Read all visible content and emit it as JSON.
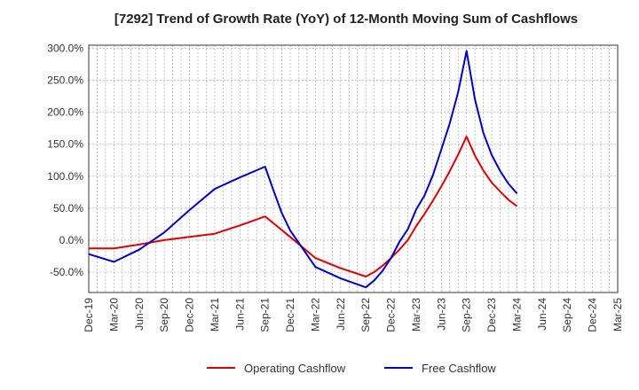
{
  "chart_data": {
    "type": "line",
    "title": "[7292]  Trend of Growth Rate (YoY) of 12-Month Moving Sum of Cashflows",
    "xlabel": "",
    "ylabel": "",
    "x_ticks": [
      "Dec-19",
      "Mar-20",
      "Jun-20",
      "Sep-20",
      "Dec-20",
      "Mar-21",
      "Jun-21",
      "Sep-21",
      "Dec-21",
      "Mar-22",
      "Jun-22",
      "Sep-22",
      "Dec-22",
      "Mar-23",
      "Jun-23",
      "Sep-23",
      "Dec-23",
      "Mar-24",
      "Jun-24",
      "Sep-24",
      "Dec-24",
      "Mar-25"
    ],
    "y_ticks": [
      "300.0%",
      "250.0%",
      "200.0%",
      "150.0%",
      "100.0%",
      "50.0%",
      "0.0%",
      "-50.0%"
    ],
    "ylim": [
      -82,
      305
    ],
    "grid": true,
    "legend_position": "bottom",
    "colors": {
      "operating": "#e00000",
      "free": "#0000cc",
      "grid": "#aaaaaa",
      "axis": "#333333"
    },
    "series": [
      {
        "name": "Operating Cashflow",
        "color": "#e00000",
        "x": [
          "Dec-19",
          "Mar-20",
          "Jun-20",
          "Sep-20",
          "Dec-20",
          "Mar-21",
          "Jun-21",
          "Sep-21",
          "Dec-21",
          "Mar-22",
          "Jun-22",
          "Sep-22",
          "Oct-22",
          "Nov-22",
          "Dec-22",
          "Jan-23",
          "Feb-23",
          "Mar-23",
          "Apr-23",
          "May-23",
          "Jun-23",
          "Jul-23",
          "Aug-23",
          "Sep-23",
          "Oct-23",
          "Nov-23",
          "Dec-23",
          "Jan-24",
          "Feb-24",
          "Mar-24"
        ],
        "values": [
          -13,
          -13,
          -7,
          0,
          5,
          10,
          23,
          37,
          5,
          -28,
          -44,
          -57,
          -50,
          -40,
          -28,
          -15,
          0,
          22,
          41,
          62,
          84,
          108,
          134,
          162,
          132,
          109,
          90,
          76,
          63,
          53
        ]
      },
      {
        "name": "Free Cashflow",
        "color": "#0000cc",
        "x": [
          "Dec-19",
          "Mar-20",
          "Jun-20",
          "Sep-20",
          "Dec-20",
          "Mar-21",
          "Jun-21",
          "Sep-21",
          "Oct-21",
          "Nov-21",
          "Dec-21",
          "Mar-22",
          "Jun-22",
          "Sep-22",
          "Oct-22",
          "Nov-22",
          "Dec-22",
          "Jan-23",
          "Feb-23",
          "Mar-23",
          "Apr-23",
          "May-23",
          "Jun-23",
          "Jul-23",
          "Aug-23",
          "Sep-23",
          "Oct-23",
          "Nov-23",
          "Dec-23",
          "Jan-24",
          "Feb-24",
          "Mar-24"
        ],
        "values": [
          -22,
          -34,
          -15,
          12,
          47,
          80,
          98,
          115,
          78,
          42,
          15,
          -42,
          -60,
          -74,
          -63,
          -48,
          -28,
          -3,
          17,
          48,
          70,
          102,
          142,
          183,
          232,
          296,
          220,
          168,
          133,
          108,
          88,
          73
        ]
      }
    ]
  }
}
